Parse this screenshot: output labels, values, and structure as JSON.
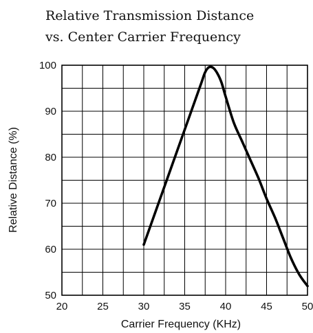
{
  "chart_data": {
    "type": "line",
    "title_line1": "Relative Transmission Distance",
    "title_line2": "vs. Center Carrier Frequency",
    "xlabel": "Carrier Frequency (KHz)",
    "ylabel": "Relative Distance (%)",
    "xlim": [
      20,
      50
    ],
    "ylim": [
      50,
      100
    ],
    "x_ticks": [
      20,
      25,
      30,
      35,
      40,
      45,
      50
    ],
    "y_ticks": [
      50,
      60,
      70,
      80,
      90,
      100
    ],
    "x_grid_step": 2.5,
    "y_grid_step": 5,
    "grid": true,
    "line_color": "#000000",
    "series": [
      {
        "x": [
          30,
          32,
          34,
          35,
          36,
          37,
          37.5,
          38,
          38.5,
          39,
          39.5,
          40,
          41,
          42,
          43,
          44,
          45,
          46,
          47,
          48,
          49,
          50
        ],
        "y": [
          61,
          71,
          81,
          86,
          91,
          96,
          98.5,
          99.6,
          99.4,
          98.2,
          96.2,
          93.2,
          87.5,
          83.5,
          79.5,
          75.5,
          71,
          67,
          62.5,
          58,
          54.5,
          52
        ]
      }
    ]
  }
}
